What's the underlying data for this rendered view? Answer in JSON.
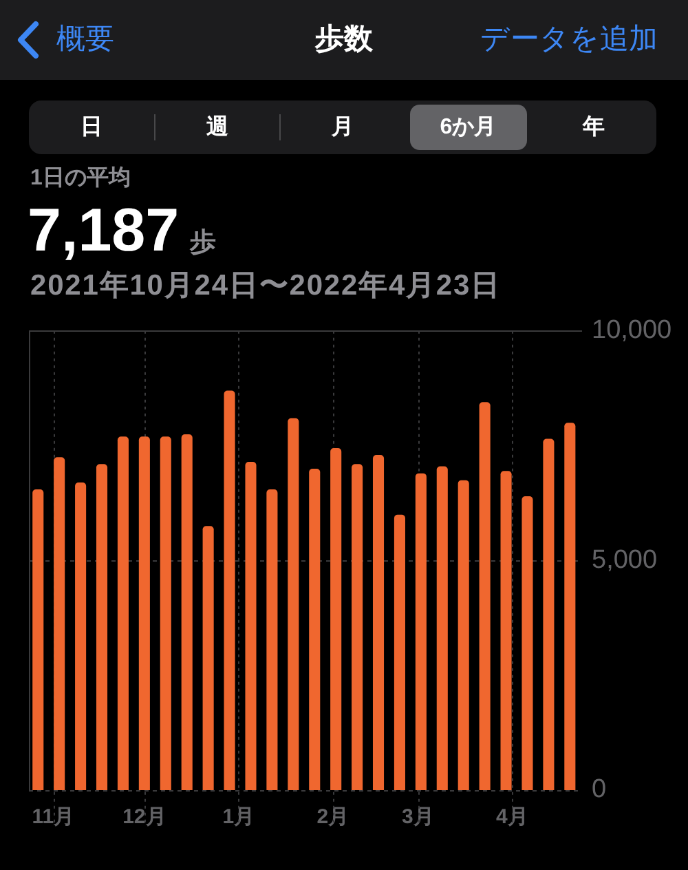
{
  "chart_data": {
    "type": "bar",
    "title": "歩数",
    "subtitle": "2021年10月24日〜2022年4月23日",
    "annotations": [
      "概要",
      "データを追加",
      "日",
      "週",
      "月",
      "6か月",
      "年",
      "1日の平均",
      "7,187",
      "歩"
    ],
    "x": [
      "2021-10-27",
      "2021-11-03",
      "2021-11-10",
      "2021-11-17",
      "2021-11-24",
      "2021-12-01",
      "2021-12-08",
      "2021-12-15",
      "2021-12-22",
      "2021-12-29",
      "2022-01-05",
      "2022-01-12",
      "2022-01-19",
      "2022-01-26",
      "2022-02-02",
      "2022-02-09",
      "2022-02-16",
      "2022-02-23",
      "2022-03-02",
      "2022-03-09",
      "2022-03-16",
      "2022-03-23",
      "2022-03-30",
      "2022-04-06",
      "2022-04-13",
      "2022-04-20"
    ],
    "values": [
      6550,
      7250,
      6700,
      7100,
      7700,
      7700,
      7700,
      7750,
      5750,
      8700,
      7150,
      6550,
      8100,
      7000,
      7450,
      7100,
      7300,
      6000,
      6900,
      7050,
      6750,
      8450,
      6950,
      6400,
      7650,
      8000
    ],
    "color": "#f0672f",
    "xlim": [
      "2021-10-24",
      "2022-04-24"
    ],
    "xticks": [
      {
        "value": "2021-11-01",
        "label": "11月"
      },
      {
        "value": "2021-12-01",
        "label": "12月"
      },
      {
        "value": "2022-01-01",
        "label": "1月"
      },
      {
        "value": "2022-02-01",
        "label": "2月"
      },
      {
        "value": "2022-03-01",
        "label": "3月"
      },
      {
        "value": "2022-04-01",
        "label": "4月"
      }
    ],
    "ylim": [
      0,
      10000
    ],
    "yticks": [
      0,
      {
        "value": 5000,
        "label": "5,000"
      },
      {
        "value": 10000,
        "label": "10,000"
      }
    ],
    "grid": true
  }
}
